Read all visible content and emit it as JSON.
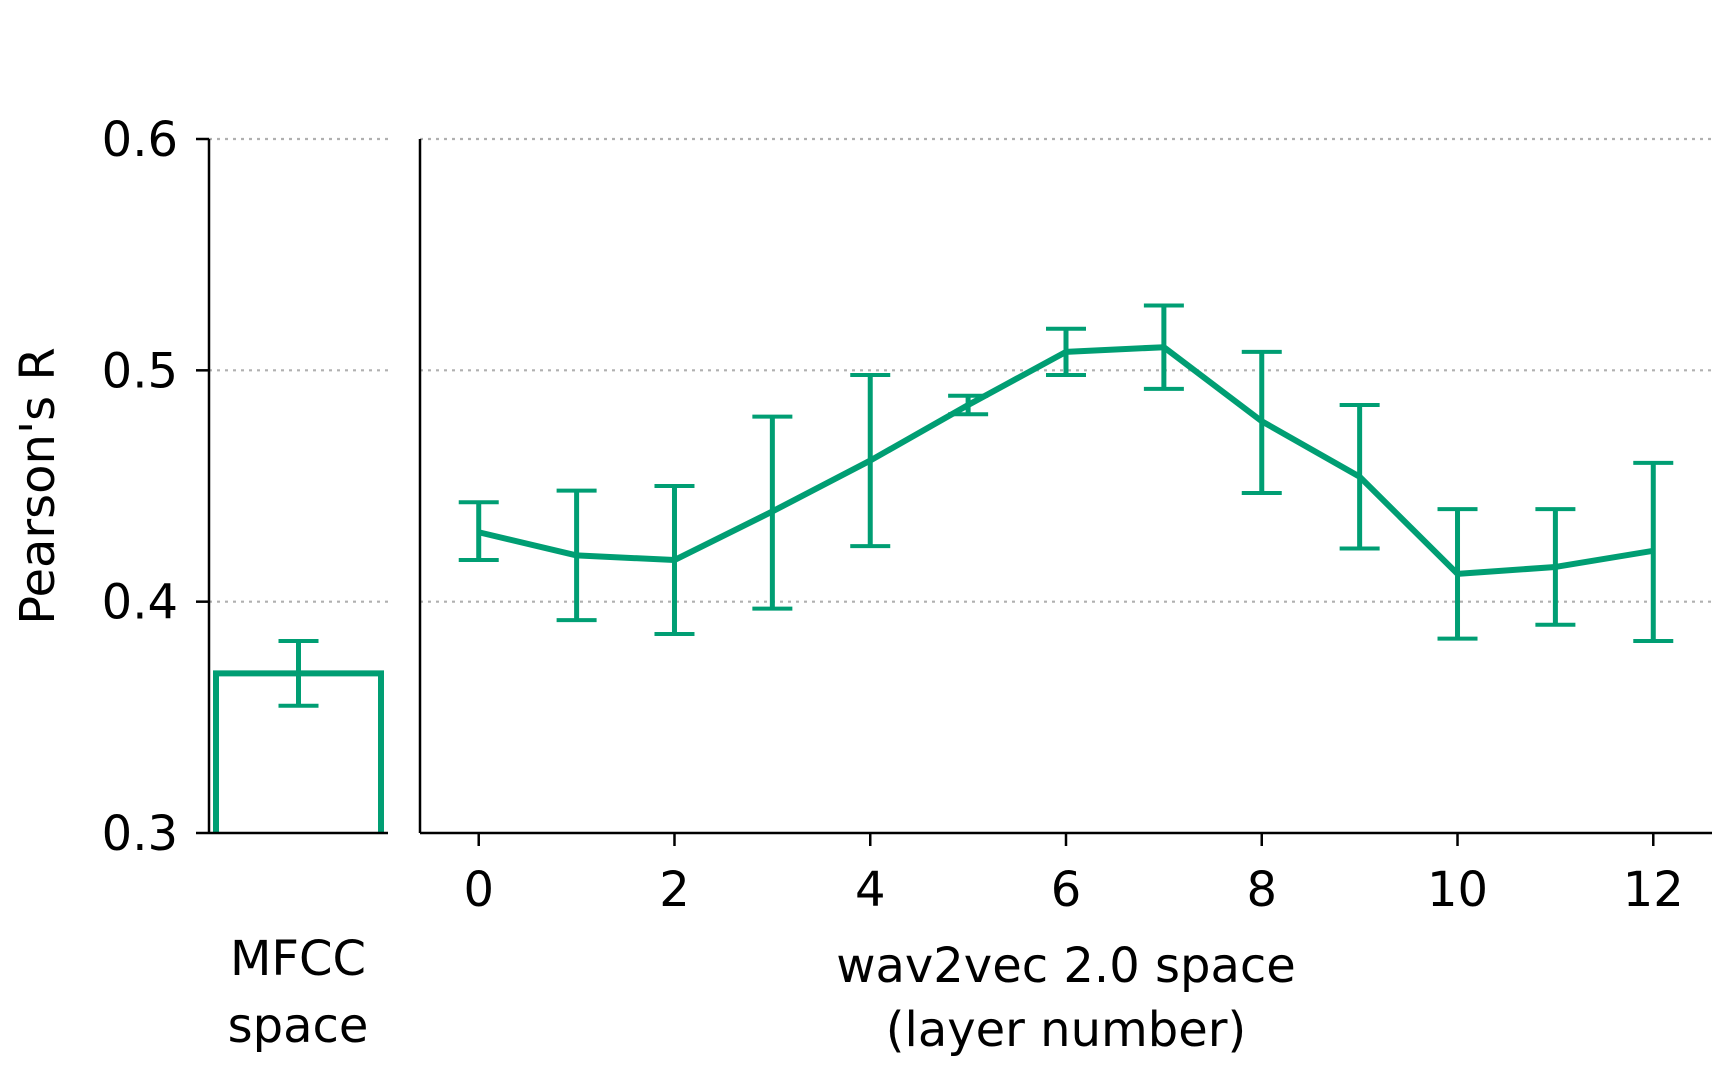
{
  "chart_data": [
    {
      "type": "bar",
      "panel": "left",
      "categories": [
        ""
      ],
      "values": [
        0.369
      ],
      "errors": [
        [
          0.355,
          0.383
        ]
      ],
      "ylabel": "Pearson's R",
      "xlabel_lines": [
        "MFCC",
        "space"
      ],
      "ylim": [
        0.3,
        0.6
      ],
      "yticks": [
        "0.3",
        "0.4",
        "0.5",
        "0.6"
      ],
      "grid": "y, dotted",
      "color": "#009e73"
    },
    {
      "type": "line",
      "panel": "right",
      "x": [
        0,
        1,
        2,
        3,
        4,
        5,
        6,
        7,
        8,
        9,
        10,
        11,
        12
      ],
      "y": [
        0.43,
        0.42,
        0.418,
        0.439,
        0.461,
        0.485,
        0.508,
        0.51,
        0.478,
        0.454,
        0.412,
        0.415,
        0.422
      ],
      "err_low": [
        0.418,
        0.392,
        0.386,
        0.397,
        0.424,
        0.481,
        0.498,
        0.492,
        0.447,
        0.423,
        0.384,
        0.39,
        0.383
      ],
      "err_high": [
        0.443,
        0.448,
        0.45,
        0.48,
        0.498,
        0.489,
        0.518,
        0.528,
        0.508,
        0.485,
        0.44,
        0.44,
        0.46
      ],
      "xlabel_lines": [
        "wav2vec 2.0 space",
        "(layer number)"
      ],
      "xticks": [
        "0",
        "2",
        "4",
        "6",
        "8",
        "10",
        "12"
      ],
      "xlim": [
        -0.6,
        12.6
      ],
      "ylim": [
        0.3,
        0.6
      ],
      "grid": "y, dotted",
      "color": "#009e73"
    }
  ]
}
